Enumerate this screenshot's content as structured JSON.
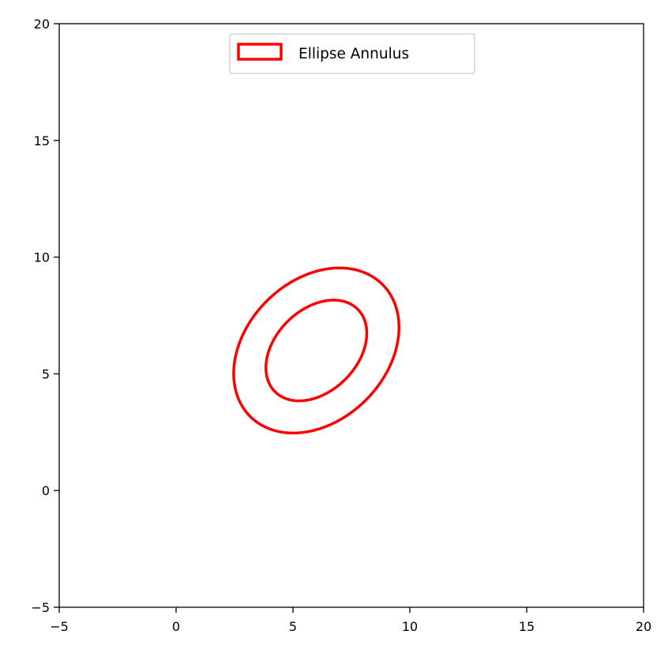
{
  "chart_data": {
    "type": "area",
    "title": "",
    "xlabel": "",
    "ylabel": "",
    "xlim": [
      -5,
      20
    ],
    "ylim": [
      -5,
      20
    ],
    "xticks": [
      -5,
      0,
      5,
      10,
      15,
      20
    ],
    "yticks": [
      -5,
      0,
      5,
      10,
      15,
      20
    ],
    "xtick_labels": [
      "−5",
      "0",
      "5",
      "10",
      "15",
      "20"
    ],
    "ytick_labels": [
      "−5",
      "0",
      "5",
      "10",
      "15",
      "20"
    ],
    "grid": false,
    "legend": {
      "position": "top-center",
      "entries": [
        "Ellipse Annulus"
      ]
    },
    "series": [
      {
        "name": "Ellipse Annulus",
        "shape": "ellipse-annulus",
        "center": [
          6,
          6
        ],
        "outer_width": 8,
        "outer_height": 6,
        "inner_width": 5,
        "inner_height": 3.5,
        "angle_deg": 45,
        "edgecolor": "#ff0000",
        "facecolor": "none"
      }
    ]
  }
}
